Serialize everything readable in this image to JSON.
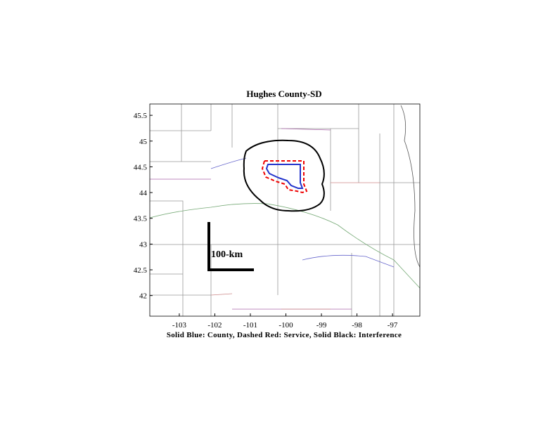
{
  "title": "Hughes County-SD",
  "caption": "Solid Blue: County, Dashed Red: Service, Solid Black: Interference",
  "scale_label": "100-km",
  "xlim": [
    -103.83,
    -96.23
  ],
  "ylim": [
    41.6,
    45.72
  ],
  "xticks": [
    -103,
    -102,
    -101,
    -100,
    -99,
    -98,
    -97
  ],
  "yticks": [
    42,
    42.5,
    43,
    43.5,
    44,
    44.5,
    45,
    45.5
  ]
}
